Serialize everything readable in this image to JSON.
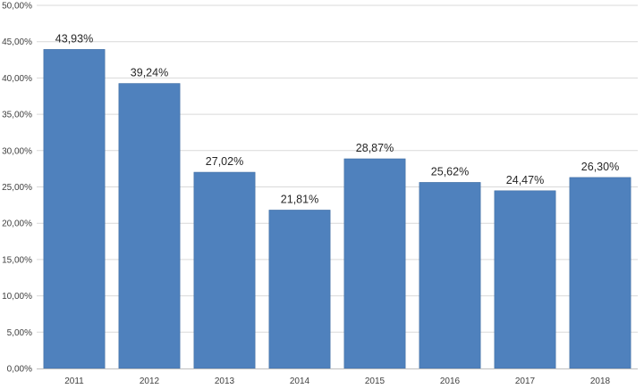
{
  "chart_data": {
    "type": "bar",
    "title": "",
    "xlabel": "",
    "ylabel": "",
    "categories": [
      "2011",
      "2012",
      "2013",
      "2014",
      "2015",
      "2016",
      "2017",
      "2018"
    ],
    "values": [
      43.93,
      39.24,
      27.02,
      21.81,
      28.87,
      25.62,
      24.47,
      26.3
    ],
    "value_labels": [
      "43,93%",
      "39,24%",
      "27,02%",
      "21,81%",
      "28,87%",
      "25,62%",
      "24,47%",
      "26,30%"
    ],
    "ylim": [
      0,
      50
    ],
    "yticks": [
      0,
      5,
      10,
      15,
      20,
      25,
      30,
      35,
      40,
      45,
      50
    ],
    "ytick_labels": [
      "0,00%",
      "5,00%",
      "10,00%",
      "15,00%",
      "20,00%",
      "25,00%",
      "30,00%",
      "35,00%",
      "40,00%",
      "45,00%",
      "50,00%"
    ],
    "grid": true,
    "legend": "none",
    "bar_color": "#4f81bd",
    "bar_edge_color": "#3f6da3"
  }
}
